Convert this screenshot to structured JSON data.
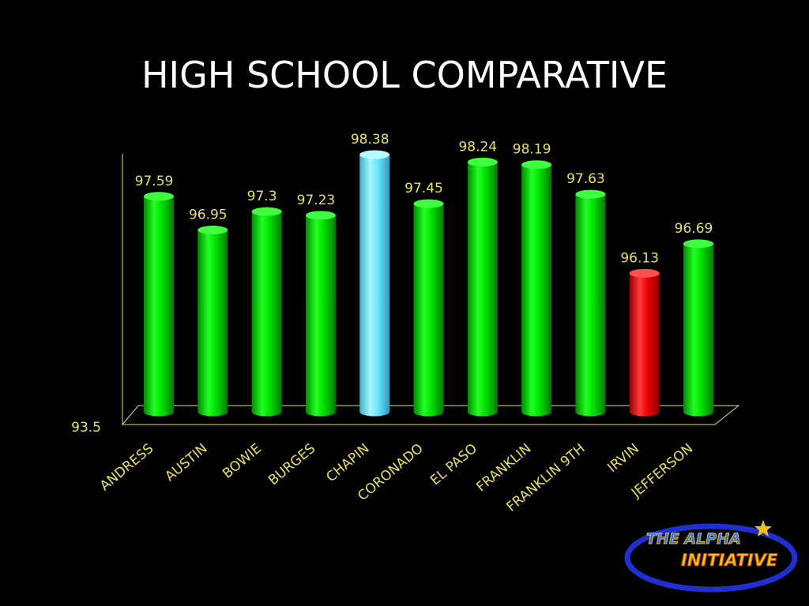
{
  "title": "HIGH SCHOOL COMPARATIVE",
  "logo": {
    "line1": "THE ALPHA",
    "line2": "INITIATIVE"
  },
  "colors": {
    "default_bar": "#00ee00",
    "highlight_bar": "#66eeff",
    "low_bar": "#ff1111",
    "value_label": "#e8e060",
    "axis": "#e8e060",
    "title": "#ffffff"
  },
  "chart_data": {
    "type": "bar",
    "title": "HIGH SCHOOL COMPARATIVE",
    "categories": [
      "ANDRESS",
      "AUSTIN",
      "BOWIE",
      "BURGES",
      "CHAPIN",
      "CORONADO",
      "EL PASO",
      "FRANKLIN",
      "FRANKLIN 9TH",
      "IRVIN",
      "JEFFERSON"
    ],
    "values": [
      97.59,
      96.95,
      97.3,
      97.23,
      98.38,
      97.45,
      98.24,
      98.19,
      97.63,
      96.13,
      96.69
    ],
    "bar_colors": [
      "green",
      "green",
      "green",
      "green",
      "cyan",
      "green",
      "green",
      "green",
      "green",
      "red",
      "green"
    ],
    "value_labels": [
      "97.59",
      "96.95",
      "97.3",
      "97.23",
      "98.38",
      "97.45",
      "98.24",
      "98.19",
      "97.63",
      "96.13",
      "96.69"
    ],
    "ylim": [
      93.5,
      98.5
    ],
    "y_ticks": [
      "93.5"
    ],
    "xlabel": "",
    "ylabel": "",
    "grid": false,
    "legend": "none"
  }
}
